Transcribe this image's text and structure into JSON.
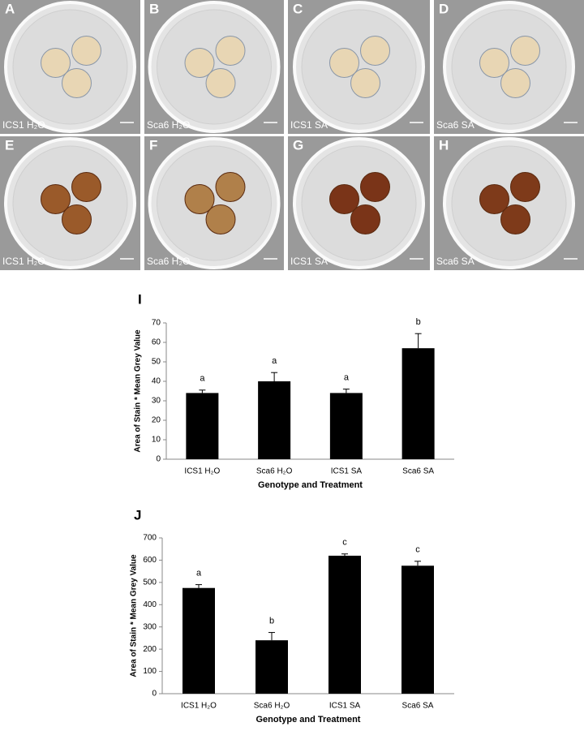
{
  "photo_panels": [
    {
      "letter": "A",
      "caption": "ICS1 H₂O"
    },
    {
      "letter": "B",
      "caption": "Sca6 H₂O"
    },
    {
      "letter": "C",
      "caption": "ICS1 SA"
    },
    {
      "letter": "D",
      "caption": "Sca6 SA"
    },
    {
      "letter": "E",
      "caption": "ICS1 H₂O"
    },
    {
      "letter": "F",
      "caption": "Sca6 H₂O"
    },
    {
      "letter": "G",
      "caption": "ICS1 SA"
    },
    {
      "letter": "H",
      "caption": "Sca6 SA"
    }
  ],
  "chart_data": [
    {
      "type": "bar",
      "panel": "I",
      "ylabel": "Area of Stain * Mean Grey Value",
      "xlabel": "Genotype and Treatment",
      "categories": [
        "ICS1 H₂O",
        "Sca6 H₂O",
        "ICS1 SA",
        "Sca6 SA"
      ],
      "values": [
        34,
        40,
        34,
        57
      ],
      "errors": [
        1.5,
        4.5,
        2,
        7.5
      ],
      "annotations": [
        "a",
        "a",
        "a",
        "b"
      ],
      "color": "#000000",
      "ylim": [
        0,
        70
      ],
      "yticks": [
        0,
        10,
        20,
        30,
        40,
        50,
        60,
        70
      ]
    },
    {
      "type": "bar",
      "panel": "J",
      "ylabel": "Area of Stain * Mean Grey Value",
      "xlabel": "Genotype and Treatment",
      "categories": [
        "ICS1 H₂O",
        "Sca6 H₂O",
        "ICS1 SA",
        "Sca6 SA"
      ],
      "values": [
        475,
        240,
        620,
        575
      ],
      "errors": [
        15,
        35,
        8,
        20
      ],
      "annotations": [
        "a",
        "b",
        "c",
        "c"
      ],
      "color": "#000000",
      "ylim": [
        0,
        700
      ],
      "yticks": [
        0,
        100,
        200,
        300,
        400,
        500,
        600,
        700
      ]
    }
  ]
}
